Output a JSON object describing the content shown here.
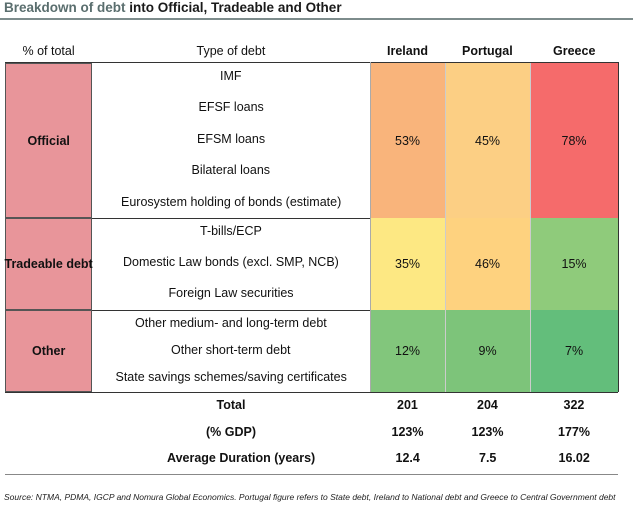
{
  "header": {
    "title_lead": "Breakdown of debt",
    "title_rest": "into Official, Tradeable and Other"
  },
  "table": {
    "columns": [
      "% of total",
      "Type of debt",
      "Ireland",
      "Portugal",
      "Greece"
    ],
    "sections": [
      {
        "label": "Official",
        "items": [
          "IMF",
          "EFSF loans",
          "EFSM loans",
          "Bilateral loans",
          "Eurosystem holding of bonds (estimate)"
        ],
        "values": [
          "53%",
          "45%",
          "78%"
        ]
      },
      {
        "label": "Tradeable debt",
        "items": [
          "T-bills/ECP",
          "Domestic Law bonds (excl. SMP, NCB)",
          "Foreign Law securities"
        ],
        "values": [
          "35%",
          "46%",
          "15%"
        ]
      },
      {
        "label": "Other",
        "items": [
          "Other medium- and long-term debt",
          "Other short-term debt",
          "State savings schemes/saving certificates"
        ],
        "values": [
          "12%",
          "9%",
          "7%"
        ]
      }
    ],
    "totals": [
      {
        "label": "Total",
        "values": [
          "201",
          "204",
          "322"
        ]
      },
      {
        "label": "(% GDP)",
        "values": [
          "123%",
          "123%",
          "177%"
        ]
      },
      {
        "label": "Average Duration (years)",
        "values": [
          "12.4",
          "7.5",
          "16.02"
        ]
      }
    ]
  },
  "source": "Source: NTMA, PDMA, IGCP and Nomura Global Economics. Portugal figure refers to State debt, Ireland to National debt and Greece to Central Government debt"
}
